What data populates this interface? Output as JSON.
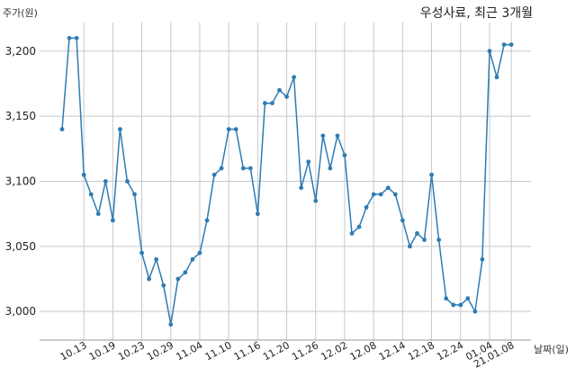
{
  "chart_data": {
    "type": "line",
    "title": "우성사료, 최근 3개월",
    "ylabel": "주가(원)",
    "xlabel": "날짜(일)",
    "ylim": [
      2978,
      3222
    ],
    "yticks": [
      3000,
      3050,
      3100,
      3150,
      3200
    ],
    "ytick_labels": [
      "3,000",
      "3,050",
      "3,100",
      "3,150",
      "3,200"
    ],
    "xtick_labels": [
      "10.13",
      "10.19",
      "10.23",
      "10.29",
      "11.04",
      "11.10",
      "11.16",
      "11.20",
      "11.26",
      "12.02",
      "12.08",
      "12.14",
      "12.18",
      "12.24",
      "01.04",
      "21.01.08"
    ],
    "xtick_index": [
      3,
      7,
      11,
      15,
      19,
      23,
      27,
      31,
      35,
      39,
      43,
      47,
      51,
      55,
      59,
      62
    ],
    "grid": true,
    "color": "#2e7cb3",
    "values": [
      3140,
      3210,
      3210,
      3105,
      3090,
      3075,
      3100,
      3070,
      3140,
      3100,
      3090,
      3045,
      3025,
      3040,
      3020,
      2990,
      3025,
      3030,
      3040,
      3045,
      3070,
      3105,
      3110,
      3140,
      3140,
      3110,
      3110,
      3075,
      3160,
      3160,
      3170,
      3165,
      3180,
      3095,
      3115,
      3085,
      3135,
      3110,
      3135,
      3120,
      3060,
      3065,
      3080,
      3090,
      3090,
      3095,
      3090,
      3070,
      3050,
      3060,
      3055,
      3105,
      3055,
      3010,
      3005,
      3005,
      3010,
      3000,
      3040,
      3200,
      3180,
      3205,
      3205
    ]
  }
}
